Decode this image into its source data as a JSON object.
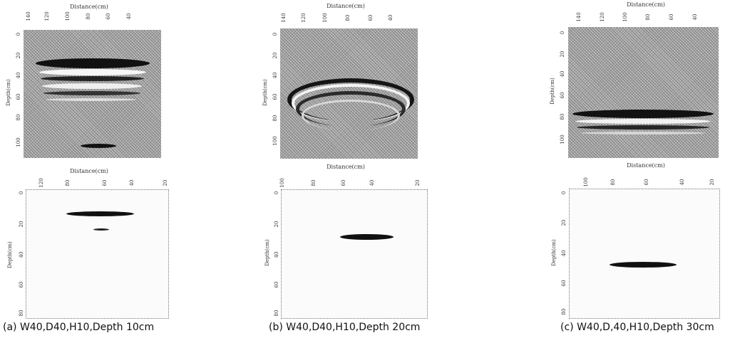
{
  "panels": [
    {
      "caption": "(a)  W40,D40,H10,Depth  10cm",
      "gpr": {
        "title": "Distance(cm)",
        "xticks": [
          "140",
          "120",
          "100",
          "80",
          "60",
          "40"
        ],
        "ylabel": "Depth(cm)",
        "yticks": [
          "0",
          "20",
          "40",
          "60",
          "80",
          "100"
        ]
      },
      "migrated": {
        "title": "Distance(cm)",
        "xticks": [
          "120",
          "80",
          "60",
          "40",
          "20"
        ],
        "ylabel": "Depth(cm)",
        "yticks": [
          "0",
          "20",
          "40",
          "60",
          "80"
        ]
      }
    },
    {
      "caption": "(b)  W40,D40,H10,Depth  20cm",
      "gpr": {
        "title": "Distance(cm)",
        "xticks": [
          "140",
          "120",
          "100",
          "80",
          "60",
          "40"
        ],
        "ylabel": "Depth(cm)",
        "yticks": [
          "0",
          "20",
          "40",
          "60",
          "80",
          "100"
        ],
        "xlabel_bottom": "Distance(cm)"
      },
      "migrated": {
        "xticks": [
          "100",
          "80",
          "60",
          "40",
          "20"
        ],
        "ylabel": "Depth(cm)",
        "yticks": [
          "0",
          "20",
          "40",
          "60",
          "80"
        ]
      }
    },
    {
      "caption": "(c)  W40,D,40,H10,Depth  30cm",
      "gpr": {
        "title": "Distance(cm)",
        "xticks": [
          "140",
          "120",
          "100",
          "80",
          "60",
          "40"
        ],
        "ylabel": "Depth(cm)",
        "yticks": [
          "0",
          "20",
          "40",
          "60",
          "80",
          "100"
        ],
        "xlabel_bottom": "Distance(cm)"
      },
      "migrated": {
        "xticks": [
          "100",
          "80",
          "60",
          "40",
          "20"
        ],
        "ylabel": "Depth(cm)",
        "yticks": [
          "0",
          "20",
          "40",
          "60",
          "80"
        ]
      }
    }
  ]
}
